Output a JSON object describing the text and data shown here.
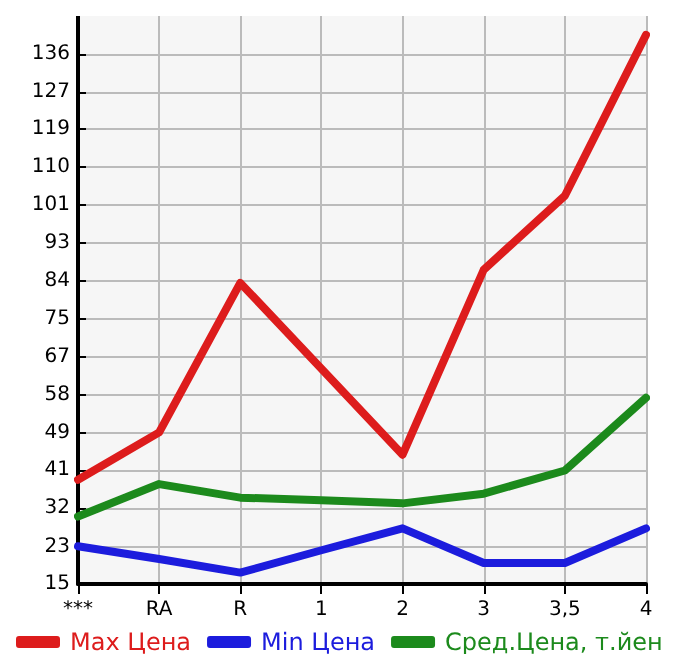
{
  "chart_data": {
    "type": "line",
    "categories": [
      "***",
      "RA",
      "R",
      "1",
      "2",
      "3",
      "3,5",
      "4"
    ],
    "series": [
      {
        "name": "Max Цена",
        "color": "#dd1c1c",
        "values": [
          38.8,
          49.6,
          83.7,
          64.1,
          44.5,
          86.7,
          103.6,
          140.3
        ]
      },
      {
        "name": "Min Цена",
        "color": "#1c1cdd",
        "values": [
          23.6,
          20.7,
          17.6,
          22.7,
          27.7,
          19.8,
          19.8,
          27.7
        ]
      },
      {
        "name": "Сред.Цена, т.йен",
        "color": "#1c8a1c",
        "values": [
          30.4,
          37.8,
          34.7,
          34.1,
          33.4,
          35.6,
          40.9,
          57.5
        ]
      }
    ],
    "ylim": [
      15,
      144.6
    ],
    "yticks": [
      {
        "value": 15,
        "label": "15"
      },
      {
        "value": 23.4,
        "label": "23"
      },
      {
        "value": 32.29,
        "label": "32"
      },
      {
        "value": 40.93,
        "label": "41"
      },
      {
        "value": 49.4,
        "label": "49"
      },
      {
        "value": 58.21,
        "label": "58"
      },
      {
        "value": 66.86,
        "label": "67"
      },
      {
        "value": 75.5,
        "label": "75"
      },
      {
        "value": 84.14,
        "label": "84"
      },
      {
        "value": 92.79,
        "label": "93"
      },
      {
        "value": 101.43,
        "label": "101"
      },
      {
        "value": 110.07,
        "label": "110"
      },
      {
        "value": 118.71,
        "label": "119"
      },
      {
        "value": 127.36,
        "label": "127"
      },
      {
        "value": 136,
        "label": "136"
      }
    ],
    "grid": true,
    "legend": "bottom",
    "marker": "none",
    "line_style": "solid"
  }
}
